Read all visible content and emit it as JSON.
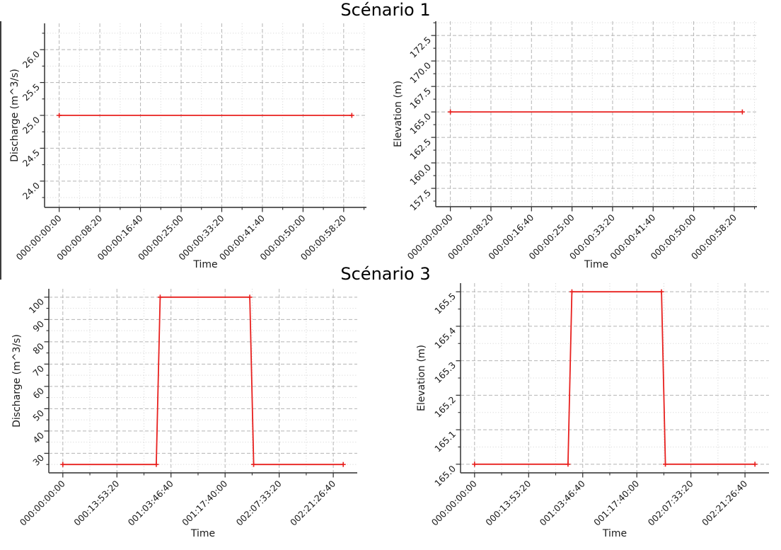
{
  "figure": {
    "background": "#ffffff",
    "accent_red": "#e8201e",
    "grid_major_color": "#b4b4b4",
    "grid_minor_color": "#d9d9d9",
    "spine_color": "#4a4a4a",
    "tick_color": "#2b2b2b",
    "text_color": "#1a1a1a"
  },
  "row_titles": [
    {
      "label": "Scénario 1"
    },
    {
      "label": "Scénario 3"
    }
  ],
  "chart_data": [
    {
      "id": "scenario1-discharge",
      "type": "line",
      "row_title": "Scénario 1",
      "xlabel": "Time",
      "ylabel": "Discharge (m^3/s)",
      "line_color": "#e8201e",
      "marker": "+",
      "grid": true,
      "legend": null,
      "xlim_seconds": [
        -180,
        3780
      ],
      "ylim": [
        23.6,
        26.4
      ],
      "x_ticks": {
        "seconds": [
          0,
          500,
          1000,
          1500,
          2000,
          2500,
          3000,
          3500
        ],
        "labels": [
          "000:00:00:00",
          "000:00:08:20",
          "000:00:16:40",
          "000:00:25:00",
          "000:00:33:20",
          "000:00:41:40",
          "000:00:50:00",
          "000:00:58:20"
        ]
      },
      "y_ticks": {
        "values": [
          24.0,
          24.5,
          25.0,
          25.5,
          26.0
        ],
        "labels": [
          "24.0",
          "24.5",
          "25.0",
          "25.5",
          "26.0"
        ]
      },
      "points": {
        "t_seconds": [
          0,
          3600
        ],
        "values": [
          25.0,
          25.0
        ]
      }
    },
    {
      "id": "scenario1-elevation",
      "type": "line",
      "row_title": "Scénario 1",
      "xlabel": "Time",
      "ylabel": "Elevation (m)",
      "line_color": "#e8201e",
      "marker": "+",
      "grid": true,
      "legend": null,
      "xlim_seconds": [
        -180,
        3780
      ],
      "ylim": [
        155.7,
        173.9
      ],
      "x_ticks": {
        "seconds": [
          0,
          500,
          1000,
          1500,
          2000,
          2500,
          3000,
          3500
        ],
        "labels": [
          "000:00:00:00",
          "000:00:08:20",
          "000:00:16:40",
          "000:00:25:00",
          "000:00:33:20",
          "000:00:41:40",
          "000:00:50:00",
          "000:00:58:20"
        ]
      },
      "y_ticks": {
        "values": [
          157.5,
          160.0,
          162.5,
          165.0,
          167.5,
          170.0,
          172.5
        ],
        "labels": [
          "157.5",
          "160.0",
          "162.5",
          "165.0",
          "167.5",
          "170.0",
          "172.5"
        ]
      },
      "points": {
        "t_seconds": [
          0,
          3600
        ],
        "values": [
          165.0,
          165.0
        ]
      }
    },
    {
      "id": "scenario3-discharge",
      "type": "line",
      "row_title": "Scénario 3",
      "xlabel": "Time",
      "ylabel": "Discharge (m^3/s)",
      "line_color": "#e8201e",
      "marker": "+",
      "grid": true,
      "legend": null,
      "xlim_seconds": [
        -12960,
        272160
      ],
      "ylim": [
        21.25,
        103.75
      ],
      "x_ticks": {
        "seconds": [
          0,
          50000,
          100000,
          150000,
          200000,
          250000
        ],
        "labels": [
          "000:00:00:00",
          "000:13:53:20",
          "001:03:46:40",
          "001:17:40:00",
          "002:07:33:20",
          "002:21:26:40"
        ]
      },
      "y_ticks": {
        "values": [
          30,
          40,
          50,
          60,
          70,
          80,
          90,
          100
        ],
        "labels": [
          "30",
          "40",
          "50",
          "60",
          "70",
          "80",
          "90",
          "100"
        ]
      },
      "points": {
        "t_seconds": [
          0,
          86400,
          90000,
          172800,
          176400,
          259200
        ],
        "values": [
          25,
          25,
          100,
          100,
          25,
          25
        ]
      }
    },
    {
      "id": "scenario3-elevation",
      "type": "line",
      "row_title": "Scénario 3",
      "xlabel": "Time",
      "ylabel": "Elevation (m)",
      "line_color": "#e8201e",
      "marker": "+",
      "grid": true,
      "legend": null,
      "xlim_seconds": [
        -12960,
        272160
      ],
      "ylim": [
        164.975,
        165.525
      ],
      "x_ticks": {
        "seconds": [
          0,
          50000,
          100000,
          150000,
          200000,
          250000
        ],
        "labels": [
          "000:00:00:00",
          "000:13:53:20",
          "001:03:46:40",
          "001:17:40:00",
          "002:07:33:20",
          "002:21:26:40"
        ]
      },
      "y_ticks": {
        "values": [
          165.0,
          165.1,
          165.2,
          165.3,
          165.4,
          165.5
        ],
        "labels": [
          "165.0",
          "165.1",
          "165.2",
          "165.3",
          "165.4",
          "165.5"
        ]
      },
      "points": {
        "t_seconds": [
          0,
          86400,
          90000,
          172800,
          176400,
          259200
        ],
        "values": [
          165.0,
          165.0,
          165.5,
          165.5,
          165.0,
          165.0
        ]
      }
    }
  ]
}
